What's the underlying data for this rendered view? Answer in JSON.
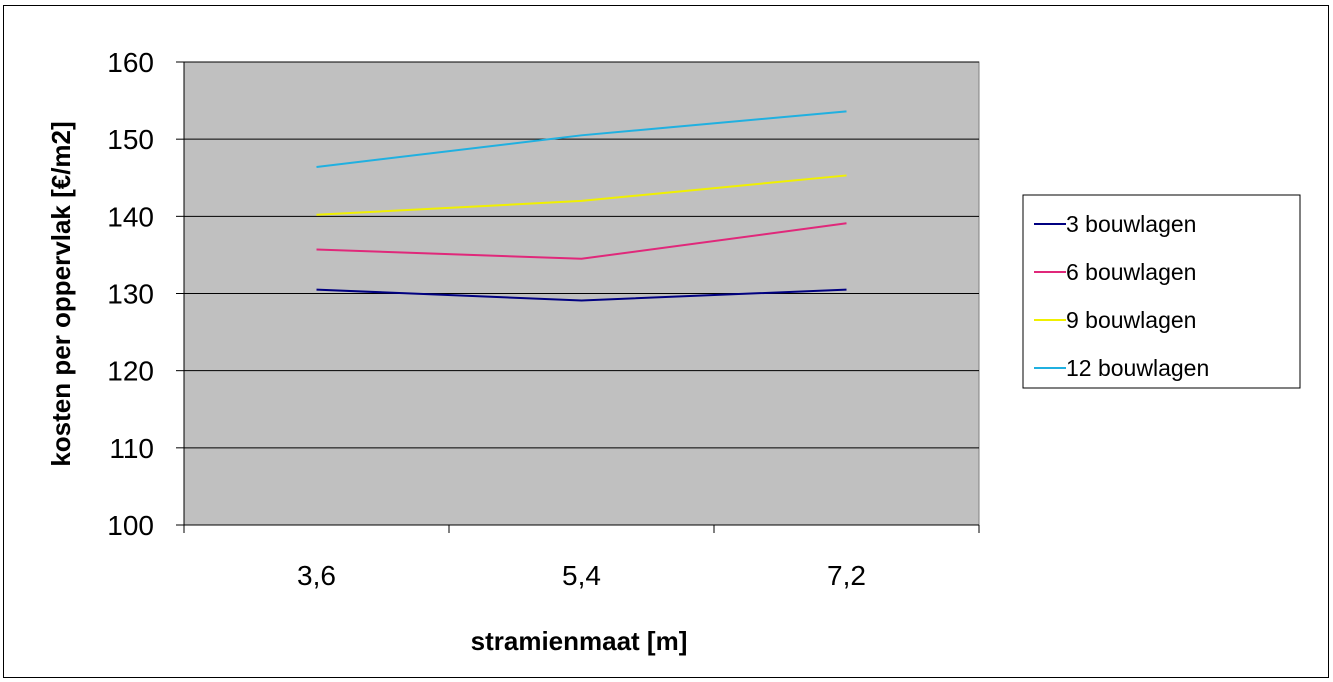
{
  "chart_data": {
    "type": "line",
    "categories": [
      "3,6",
      "5,4",
      "7,2"
    ],
    "xlabel": "stramienmaat [m]",
    "ylabel": "kosten per oppervlak [€/m2]",
    "ylim": [
      100,
      160
    ],
    "yticks": [
      "100",
      "110",
      "120",
      "130",
      "140",
      "150",
      "160"
    ],
    "grid": true,
    "legend_position": "right",
    "plot_background": "#c0c0c0",
    "series": [
      {
        "name": "3 bouwlagen",
        "color": "#000080",
        "values": [
          130.5,
          129.1,
          130.5
        ]
      },
      {
        "name": "6 bouwlagen",
        "color": "#e0287a",
        "values": [
          135.7,
          134.5,
          139.1
        ]
      },
      {
        "name": "9 bouwlagen",
        "color": "#f0f000",
        "values": [
          140.2,
          142.0,
          145.3
        ]
      },
      {
        "name": "12 bouwlagen",
        "color": "#20b0e0",
        "values": [
          146.4,
          150.5,
          153.6
        ]
      }
    ]
  }
}
